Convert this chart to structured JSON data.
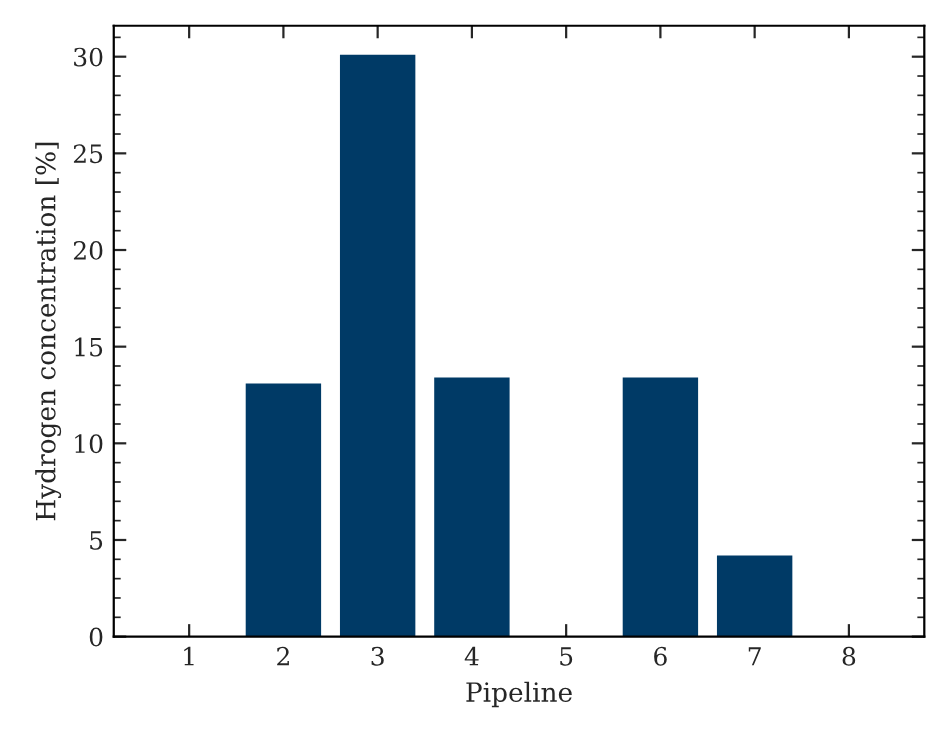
{
  "chart_data": {
    "type": "bar",
    "xlabel": "Pipeline",
    "ylabel": "Hydrogen concentration [%]",
    "x": [
      1,
      2,
      3,
      4,
      5,
      6,
      7,
      8
    ],
    "values": [
      0,
      13.1,
      30.1,
      13.4,
      0,
      13.4,
      4.2,
      0
    ],
    "color": "#003a66",
    "xlim": [
      0.2,
      8.8
    ],
    "xticks": [
      1,
      2,
      3,
      4,
      5,
      6,
      7,
      8
    ],
    "ylim": [
      0,
      31.6
    ],
    "yticks": [
      0,
      5,
      10,
      15,
      20,
      25,
      30
    ],
    "grid": false,
    "legend": false
  }
}
